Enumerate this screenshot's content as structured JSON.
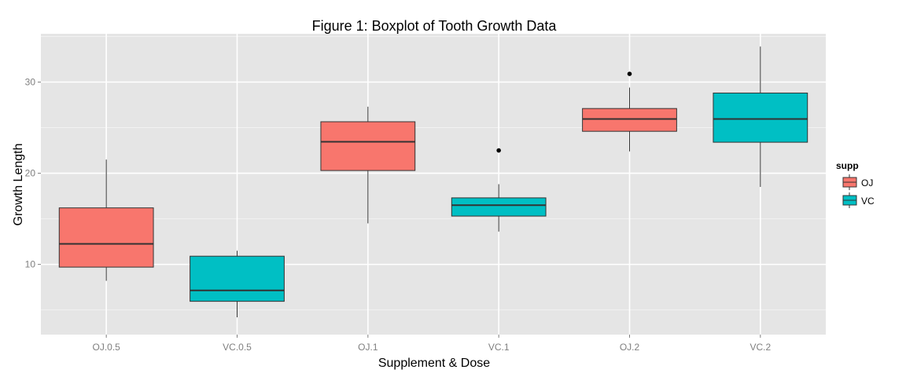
{
  "chart_data": {
    "type": "boxplot",
    "title": "Figure 1: Boxplot of Tooth Growth Data",
    "xlabel": "Supplement & Dose",
    "ylabel": "Growth Length",
    "ylim": [
      2.3,
      35.3
    ],
    "yticks": [
      10,
      20,
      30
    ],
    "grid": true,
    "legend": {
      "title": "supp",
      "position": "right",
      "entries": [
        {
          "label": "OJ",
          "color": "#F8766D"
        },
        {
          "label": "VC",
          "color": "#00BFC4"
        }
      ]
    },
    "categories": [
      "OJ.0.5",
      "VC.0.5",
      "OJ.1",
      "VC.1",
      "OJ.2",
      "VC.2"
    ],
    "boxes": [
      {
        "category": "OJ.0.5",
        "supp": "OJ",
        "whisker_low": 8.2,
        "q1": 9.7,
        "median": 12.25,
        "q3": 16.2,
        "whisker_high": 21.5,
        "outliers": []
      },
      {
        "category": "VC.0.5",
        "supp": "VC",
        "whisker_low": 4.2,
        "q1": 5.95,
        "median": 7.15,
        "q3": 10.9,
        "whisker_high": 11.5,
        "outliers": []
      },
      {
        "category": "OJ.1",
        "supp": "OJ",
        "whisker_low": 14.5,
        "q1": 20.3,
        "median": 23.45,
        "q3": 25.65,
        "whisker_high": 27.3,
        "outliers": []
      },
      {
        "category": "VC.1",
        "supp": "VC",
        "whisker_low": 13.6,
        "q1": 15.3,
        "median": 16.5,
        "q3": 17.3,
        "whisker_high": 18.8,
        "outliers": [
          22.5
        ]
      },
      {
        "category": "OJ.2",
        "supp": "OJ",
        "whisker_low": 22.4,
        "q1": 24.6,
        "median": 25.95,
        "q3": 27.1,
        "whisker_high": 29.4,
        "outliers": [
          30.9
        ]
      },
      {
        "category": "VC.2",
        "supp": "VC",
        "whisker_low": 18.5,
        "q1": 23.4,
        "median": 25.95,
        "q3": 28.8,
        "whisker_high": 33.9,
        "outliers": []
      }
    ],
    "colors": {
      "OJ": "#F8766D",
      "VC": "#00BFC4",
      "panel": "#E5E5E5",
      "grid_major": "#FFFFFF",
      "grid_minor": "#F2F2F2"
    }
  }
}
